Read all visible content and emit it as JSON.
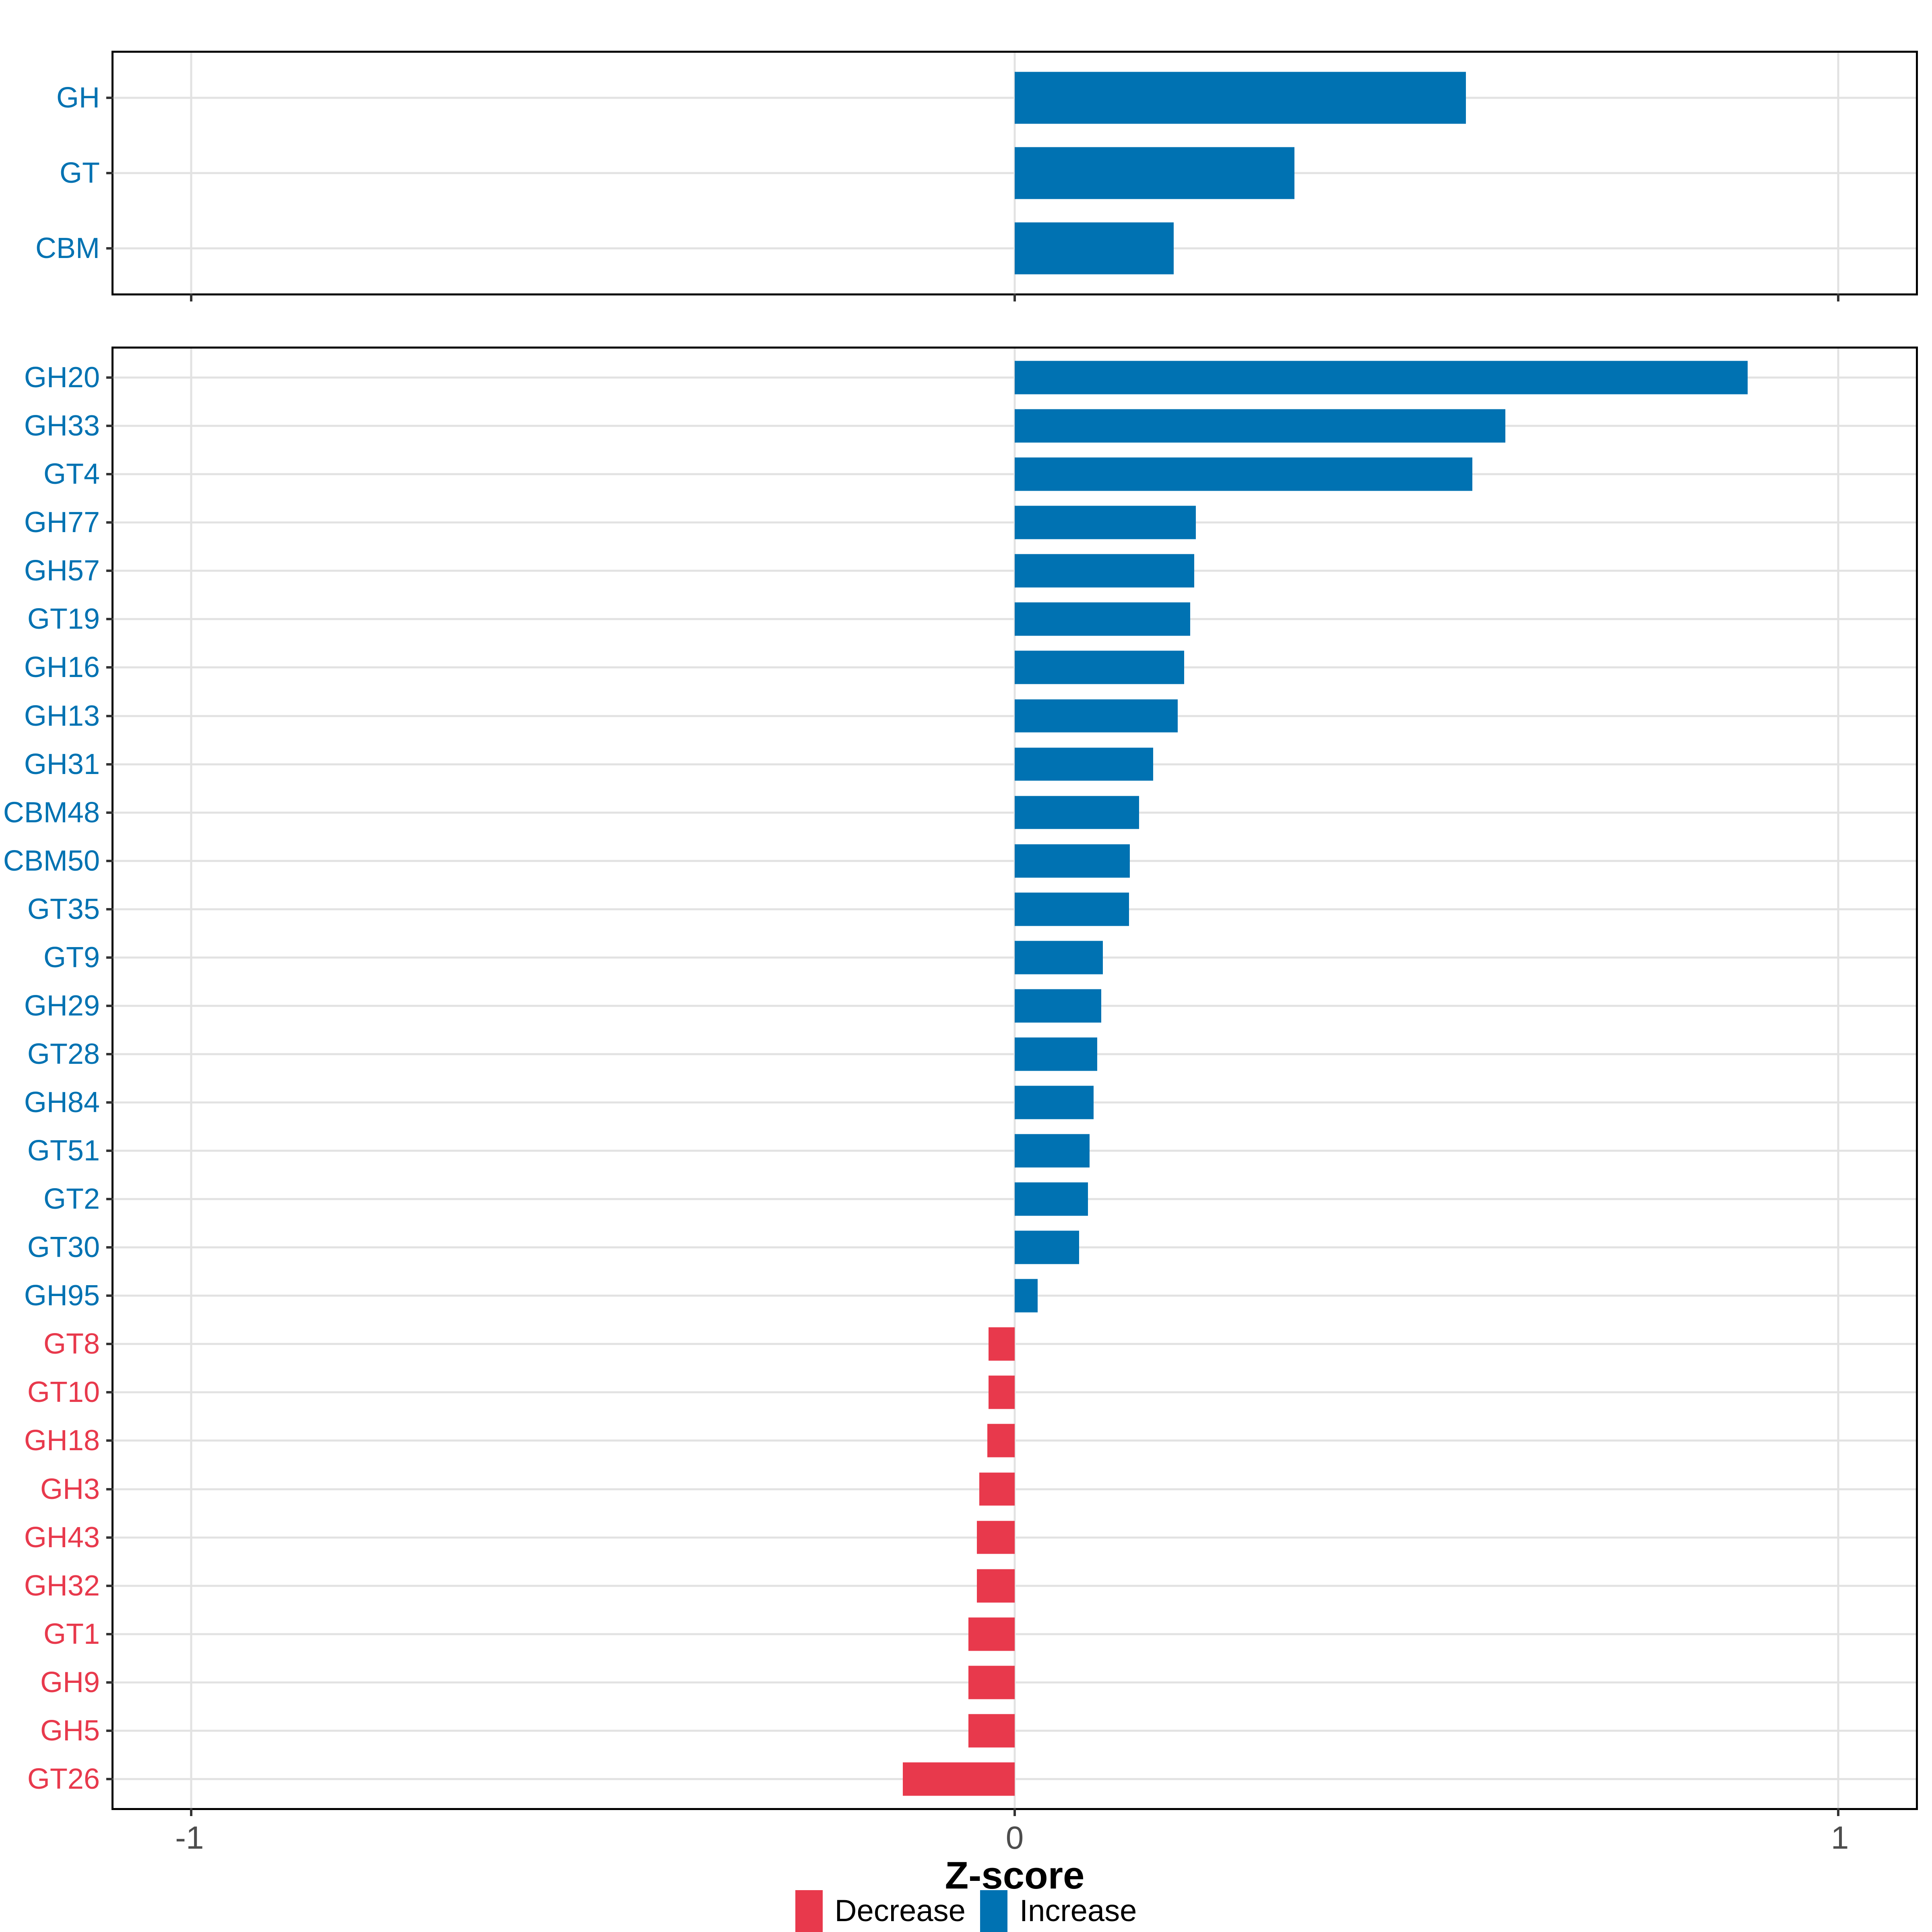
{
  "figure": {
    "xlabel": "Z-score",
    "x_ticks": [
      {
        "value": -1,
        "label": "-1"
      },
      {
        "value": 0,
        "label": "0"
      },
      {
        "value": 1,
        "label": "1"
      }
    ],
    "colors": {
      "increase": "#0072B2",
      "decrease": "#E8394C",
      "grid": "#E2E2E2",
      "axis_text": "#4D4D4D",
      "panel_border": "#000000"
    },
    "legend": [
      {
        "label": "Decrease",
        "color": "#E8394C"
      },
      {
        "label": "Increase",
        "color": "#0072B2"
      }
    ]
  },
  "chart_data": [
    {
      "type": "bar",
      "orientation": "horizontal",
      "panel": "top",
      "title": "",
      "xlabel": "Z-score",
      "ylabel": "",
      "xlim": [
        -1.095,
        1.095
      ],
      "grid": true,
      "categories": [
        "GH",
        "GT",
        "CBM"
      ],
      "values": [
        0.548,
        0.34,
        0.193
      ],
      "directions": [
        "Increase",
        "Increase",
        "Increase"
      ]
    },
    {
      "type": "bar",
      "orientation": "horizontal",
      "panel": "bottom",
      "title": "",
      "xlabel": "Z-score",
      "ylabel": "",
      "xlim": [
        -1.095,
        1.095
      ],
      "grid": true,
      "categories": [
        "GH20",
        "GH33",
        "GT4",
        "GH77",
        "GH57",
        "GT19",
        "GH16",
        "GH13",
        "GH31",
        "CBM48",
        "CBM50",
        "GT35",
        "GT9",
        "GH29",
        "GT28",
        "GH84",
        "GT51",
        "GT2",
        "GT30",
        "GH95",
        "GT8",
        "GT10",
        "GH18",
        "GH3",
        "GH43",
        "GH32",
        "GT1",
        "GH9",
        "GH5",
        "GT26"
      ],
      "values": [
        0.89,
        0.596,
        0.556,
        0.22,
        0.218,
        0.213,
        0.206,
        0.198,
        0.168,
        0.151,
        0.14,
        0.139,
        0.107,
        0.105,
        0.1,
        0.096,
        0.091,
        0.089,
        0.078,
        0.028,
        -0.032,
        -0.032,
        -0.033,
        -0.043,
        -0.046,
        -0.046,
        -0.056,
        -0.056,
        -0.056,
        -0.136
      ],
      "directions": [
        "Increase",
        "Increase",
        "Increase",
        "Increase",
        "Increase",
        "Increase",
        "Increase",
        "Increase",
        "Increase",
        "Increase",
        "Increase",
        "Increase",
        "Increase",
        "Increase",
        "Increase",
        "Increase",
        "Increase",
        "Increase",
        "Increase",
        "Increase",
        "Decrease",
        "Decrease",
        "Decrease",
        "Decrease",
        "Decrease",
        "Decrease",
        "Decrease",
        "Decrease",
        "Decrease",
        "Decrease"
      ]
    }
  ]
}
